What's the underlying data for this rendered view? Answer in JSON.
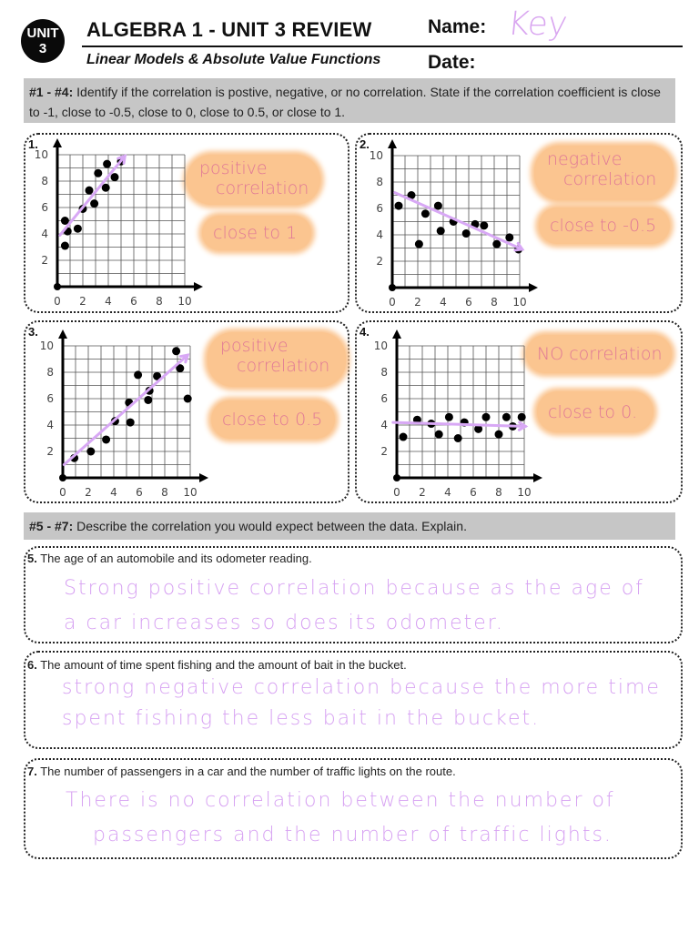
{
  "header": {
    "badge_line1": "UNIT",
    "badge_line2": "3",
    "title": "ALGEBRA 1 - UNIT 3 REVIEW",
    "subtitle": "Linear Models & Absolute Value Functions",
    "name_label": "Name:",
    "name_value": "Key",
    "date_label": "Date:"
  },
  "section1": {
    "label": "#1 - #4:",
    "instructions": "Identify if the correlation is postive, negative, or no correlation. State if the correlation coefficient is close to -1, close to -0.5, close to 0, close to 0.5, or close to 1."
  },
  "section2": {
    "label": "#5 - #7:",
    "instructions": "Describe the correlation you would expect between the data. Explain."
  },
  "colors": {
    "highlight": "#fbc590",
    "handwriting": "#d7a2f2",
    "trend_line": "#d8a8f5",
    "answer_text": "#e07896",
    "instruction_bar": "#c6c6c6"
  },
  "chart_data": [
    {
      "type": "scatter",
      "number": "1.",
      "x_ticks": [
        "0",
        "2",
        "4",
        "6",
        "8",
        "10"
      ],
      "y_ticks": [
        "2",
        "4",
        "6",
        "8",
        "10"
      ],
      "xlim": [
        0,
        10
      ],
      "ylim": [
        0,
        10
      ],
      "grid": true,
      "points": [
        [
          0.6,
          3.1
        ],
        [
          0.6,
          5.0
        ],
        [
          0.8,
          4.2
        ],
        [
          1.6,
          4.4
        ],
        [
          2.0,
          5.9
        ],
        [
          2.5,
          7.3
        ],
        [
          2.9,
          6.3
        ],
        [
          3.2,
          8.6
        ],
        [
          3.8,
          7.5
        ],
        [
          3.9,
          9.3
        ],
        [
          4.5,
          8.3
        ],
        [
          5.0,
          9.5
        ]
      ],
      "trend": [
        [
          0.2,
          3.9
        ],
        [
          5.3,
          9.9
        ]
      ],
      "answer_line1": "positive",
      "answer_line1b": "correlation",
      "answer_line2": "close to 1"
    },
    {
      "type": "scatter",
      "number": "2.",
      "x_ticks": [
        "0",
        "2",
        "4",
        "6",
        "8",
        "10"
      ],
      "y_ticks": [
        "2",
        "4",
        "6",
        "8",
        "10"
      ],
      "xlim": [
        0,
        10
      ],
      "ylim": [
        0,
        10
      ],
      "grid": true,
      "points": [
        [
          0.5,
          6.2
        ],
        [
          1.5,
          7.0
        ],
        [
          2.1,
          3.3
        ],
        [
          2.6,
          5.6
        ],
        [
          3.6,
          6.2
        ],
        [
          3.8,
          4.3
        ],
        [
          4.8,
          5.0
        ],
        [
          5.8,
          4.1
        ],
        [
          6.5,
          4.8
        ],
        [
          7.2,
          4.7
        ],
        [
          8.2,
          3.3
        ],
        [
          9.2,
          3.8
        ],
        [
          9.9,
          2.9
        ]
      ],
      "trend": [
        [
          0.2,
          7.2
        ],
        [
          10.2,
          2.9
        ]
      ],
      "answer_line1": "negative",
      "answer_line1b": "correlation",
      "answer_line2": "close to -0.5"
    },
    {
      "type": "scatter",
      "number": "3.",
      "x_ticks": [
        "0",
        "2",
        "4",
        "6",
        "8",
        "10"
      ],
      "y_ticks": [
        "2",
        "4",
        "6",
        "8",
        "10"
      ],
      "xlim": [
        0,
        10
      ],
      "ylim": [
        0,
        10
      ],
      "grid": true,
      "points": [
        [
          0.9,
          1.5
        ],
        [
          2.2,
          2.0
        ],
        [
          3.4,
          2.9
        ],
        [
          4.1,
          4.3
        ],
        [
          5.2,
          5.7
        ],
        [
          5.3,
          4.2
        ],
        [
          5.9,
          7.8
        ],
        [
          6.8,
          6.6
        ],
        [
          6.7,
          5.9
        ],
        [
          7.4,
          7.7
        ],
        [
          8.9,
          9.6
        ],
        [
          9.2,
          8.3
        ],
        [
          9.8,
          6.0
        ]
      ],
      "trend": [
        [
          0.1,
          1.0
        ],
        [
          9.8,
          9.3
        ]
      ],
      "answer_line1": "positive",
      "answer_line1b": "correlation",
      "answer_line2": "close to 0.5"
    },
    {
      "type": "scatter",
      "number": "4.",
      "x_ticks": [
        "0",
        "2",
        "4",
        "6",
        "8",
        "10"
      ],
      "y_ticks": [
        "2",
        "4",
        "6",
        "8",
        "10"
      ],
      "xlim": [
        0,
        10
      ],
      "ylim": [
        0,
        10
      ],
      "grid": true,
      "points": [
        [
          0.5,
          3.1
        ],
        [
          1.6,
          4.4
        ],
        [
          2.7,
          4.1
        ],
        [
          3.3,
          3.3
        ],
        [
          4.1,
          4.6
        ],
        [
          4.8,
          3.0
        ],
        [
          5.3,
          4.2
        ],
        [
          6.4,
          3.7
        ],
        [
          7.0,
          4.6
        ],
        [
          8.0,
          3.3
        ],
        [
          8.6,
          4.6
        ],
        [
          9.1,
          3.9
        ],
        [
          9.8,
          4.6
        ]
      ],
      "trend": [
        [
          -0.3,
          4.2
        ],
        [
          10.1,
          3.9
        ]
      ],
      "answer_line1": "NO correlation",
      "answer_line1b": "",
      "answer_line2": "close to 0."
    }
  ],
  "questions": [
    {
      "number": "5.",
      "prompt": "The age of an automobile and its odometer reading.",
      "answer_line1": "Strong positive correlation because as the age of",
      "answer_line2": "a car increases so does its odometer."
    },
    {
      "number": "6.",
      "prompt": "The amount of time spent fishing and the amount of bait in the bucket.",
      "answer_line1": "strong negative correlation because the more time",
      "answer_line2": "spent fishing the less bait in the bucket."
    },
    {
      "number": "7.",
      "prompt": "The number of passengers in a car and the number of traffic lights on the route.",
      "answer_line1": "There is no correlation between the number of",
      "answer_line2": "passengers and the number of traffic lights."
    }
  ]
}
